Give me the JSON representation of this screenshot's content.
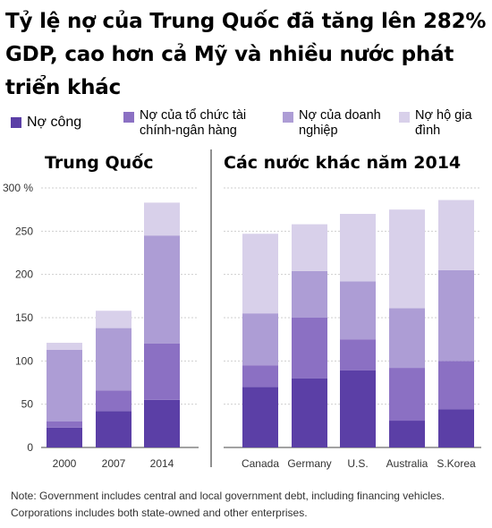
{
  "title": "Tỷ lệ nợ của Trung Quốc đã tăng lên 282% GDP, cao hơn cả Mỹ và nhiều nước phát triển khác",
  "legend": [
    {
      "label": "Nợ công",
      "color": "#5b3fa6"
    },
    {
      "label": "Nợ của tổ chức tài\nchính-ngân hàng",
      "color": "#8b70c3"
    },
    {
      "label": "Nợ của doanh\nnghiệp",
      "color": "#ad9dd5"
    },
    {
      "label": "Nợ hộ gia\nđình",
      "color": "#d8d0ea"
    }
  ],
  "panel_left_title": "Trung Quốc",
  "panel_right_title": "Các nước khác năm 2014",
  "y_ticks": [
    "0",
    "50",
    "100",
    "150",
    "200",
    "250",
    "300 %"
  ],
  "note": "Note: Government includes central and local government debt, including financing vehicles. Corporations includes both state-owned and other enterprises.",
  "chart_data": {
    "type": "bar",
    "stacked": true,
    "ylim": [
      0,
      300
    ],
    "y_unit": "%",
    "categories": [
      "2000",
      "2007",
      "2014",
      "Canada",
      "Germany",
      "U.S.",
      "Australia",
      "S.Korea"
    ],
    "groups": [
      {
        "title": "Trung Quốc",
        "categories": [
          "2000",
          "2007",
          "2014"
        ]
      },
      {
        "title": "Các nước khác năm 2014",
        "categories": [
          "Canada",
          "Germany",
          "U.S.",
          "Australia",
          "S.Korea"
        ]
      }
    ],
    "series": [
      {
        "name": "Nợ công",
        "values": [
          23,
          42,
          55,
          70,
          80,
          89,
          31,
          44
        ]
      },
      {
        "name": "Nợ của tổ chức tài chính-ngân hàng",
        "values": [
          7,
          24,
          65,
          25,
          70,
          36,
          61,
          56
        ]
      },
      {
        "name": "Nợ của doanh nghiệp",
        "values": [
          83,
          72,
          125,
          60,
          54,
          67,
          69,
          105
        ]
      },
      {
        "name": "Nợ hộ gia đình",
        "values": [
          8,
          20,
          38,
          92,
          54,
          78,
          114,
          81
        ]
      }
    ]
  }
}
